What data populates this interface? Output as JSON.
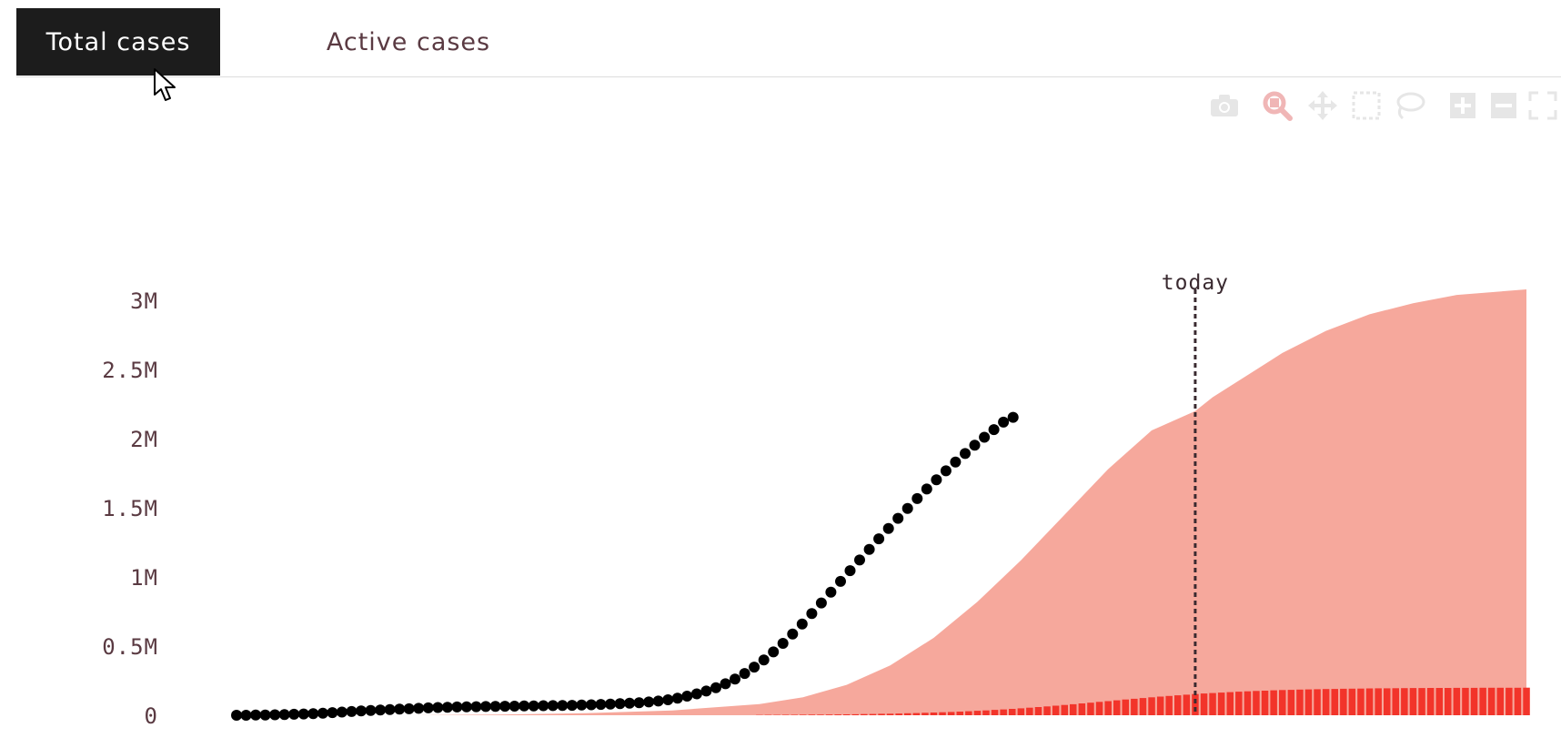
{
  "tabs": [
    {
      "label": "Total cases",
      "selected": true
    },
    {
      "label": "Active cases",
      "selected": false
    }
  ],
  "toolbar": {
    "icons": [
      "camera-icon",
      "zoom-icon",
      "pan-icon",
      "box-select-icon",
      "lasso-select-icon",
      "zoom-in-icon",
      "zoom-out-icon",
      "autoscale-icon"
    ]
  },
  "colors": {
    "tab_selected_bg": "#1c1c1c",
    "tab_text": "#5a3a42",
    "projection_area": "#f6a89c",
    "new_cases_bars": "#f2342a",
    "observed_points": "#000000",
    "today_line": "#3a2a30",
    "axis_text": "#5a3a42"
  },
  "chart_data": {
    "type": "area",
    "title": "",
    "xlabel": "",
    "ylabel": "",
    "ylim": [
      0,
      3100000
    ],
    "y_ticks": [
      {
        "value": 0,
        "label": "0"
      },
      {
        "value": 500000,
        "label": "0.5M"
      },
      {
        "value": 1000000,
        "label": "1M"
      },
      {
        "value": 1500000,
        "label": "1.5M"
      },
      {
        "value": 2000000,
        "label": "2M"
      },
      {
        "value": 2500000,
        "label": "2.5M"
      },
      {
        "value": 3000000,
        "label": "3M"
      }
    ],
    "x_range": [
      0,
      148
    ],
    "today_index": 110,
    "annotation": {
      "text": "today",
      "x": 110
    },
    "grid": false,
    "legend": "none",
    "series": [
      {
        "type": "dots",
        "values": [
          0,
          0,
          1000,
          2000,
          3000,
          5000,
          7000,
          9000,
          12000,
          15000,
          19000,
          23000,
          27000,
          31000,
          35000,
          38000,
          41000,
          44000,
          47000,
          50000,
          53000,
          56000,
          58000,
          60000,
          61000,
          62000,
          63000,
          64000,
          65000,
          66000,
          67000,
          68000,
          69000,
          70000,
          71000,
          72000,
          74000,
          76000,
          78000,
          81000,
          84000,
          87000,
          91000,
          96000,
          103000,
          112000,
          124000,
          138000,
          155000,
          175000,
          199000,
          228000,
          262000,
          302000,
          348000,
          400000,
          458000,
          520000,
          588000,
          660000,
          735000,
          812000,
          890000,
          968000,
          1046000,
          1123000,
          1200000,
          1276000,
          1351000,
          1424000,
          1496000,
          1567000,
          1636000,
          1703000,
          1768000,
          1832000,
          1893000,
          1953000,
          2011000,
          2066000,
          2120000,
          2155000
        ],
        "x_start": 0,
        "x_step": 1.1,
        "approximate": true
      },
      {
        "type": "area",
        "x": [
          20,
          30,
          40,
          50,
          60,
          65,
          70,
          75,
          80,
          85,
          90,
          95,
          100,
          105,
          110,
          112,
          116,
          120,
          125,
          130,
          135,
          140,
          148
        ],
        "values": [
          0,
          5000,
          15000,
          35000,
          80000,
          130000,
          220000,
          360000,
          560000,
          820000,
          1120000,
          1450000,
          1780000,
          2060000,
          2200000,
          2300000,
          2460000,
          2620000,
          2780000,
          2900000,
          2980000,
          3040000,
          3080000
        ],
        "approximate": true
      },
      {
        "type": "bar",
        "x_start": 60,
        "x_end": 148,
        "x_step": 1,
        "max_value": 200000,
        "approximate": true
      }
    ]
  }
}
